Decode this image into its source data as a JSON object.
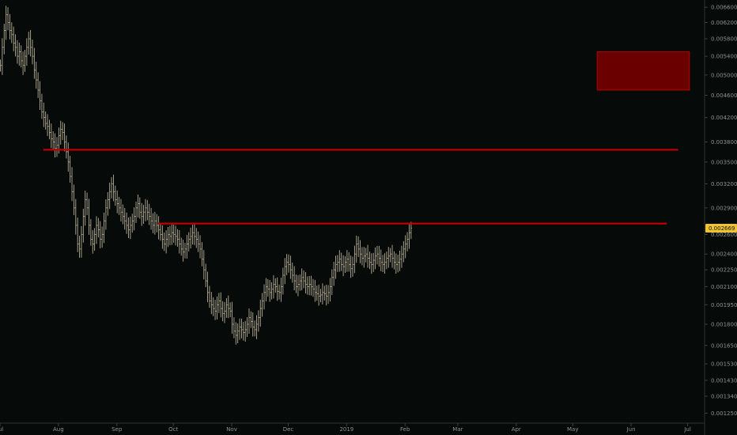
{
  "chart_data": {
    "type": "ohlc",
    "title": "",
    "xlabel": "",
    "ylabel": "",
    "ylim": [
      0.0012,
      0.0068
    ],
    "y_scale": "log",
    "grid": false,
    "x_ticks": [
      "Jul",
      "Aug",
      "Sep",
      "Oct",
      "Nov",
      "Dec",
      "2019",
      "Feb",
      "Mar",
      "Apr",
      "May",
      "Jun",
      "Jul"
    ],
    "y_ticks": [
      "0.006600",
      "0.006200",
      "0.005800",
      "0.005400",
      "0.005000",
      "0.004600",
      "0.004200",
      "0.003800",
      "0.003500",
      "0.003200",
      "0.002900",
      "0.002600",
      "0.002400",
      "0.002250",
      "0.002100",
      "0.001950",
      "0.001800",
      "0.001650",
      "0.001530",
      "0.001430",
      "0.001340",
      "0.001250"
    ],
    "last_price": "0.002669",
    "x_range": [
      "2018-07-01",
      "2019-07-10"
    ],
    "series": [
      {
        "type": "ohlc",
        "start": "2018-07-01",
        "interval": "1 day",
        "closes": [
          0.0052,
          0.0056,
          0.006,
          0.0064,
          0.0062,
          0.006,
          0.0059,
          0.0057,
          0.0056,
          0.0054,
          0.0055,
          0.0053,
          0.0052,
          0.0054,
          0.0056,
          0.0058,
          0.0056,
          0.0054,
          0.0051,
          0.0049,
          0.0047,
          0.0045,
          0.0043,
          0.0042,
          0.0041,
          0.00405,
          0.00395,
          0.00385,
          0.0038,
          0.0037,
          0.00375,
          0.0039,
          0.004,
          0.00395,
          0.0038,
          0.00365,
          0.0035,
          0.0033,
          0.0031,
          0.0029,
          0.0027,
          0.0025,
          0.00245,
          0.0026,
          0.0028,
          0.003,
          0.0029,
          0.0027,
          0.00255,
          0.0025,
          0.0026,
          0.0027,
          0.00265,
          0.00255,
          0.0026,
          0.00275,
          0.0029,
          0.003,
          0.0031,
          0.0032,
          0.0031,
          0.003,
          0.00295,
          0.0029,
          0.00285,
          0.0028,
          0.00275,
          0.0027,
          0.00265,
          0.0027,
          0.00275,
          0.0028,
          0.0029,
          0.00295,
          0.00285,
          0.0028,
          0.00285,
          0.0029,
          0.00285,
          0.0028,
          0.00275,
          0.0027,
          0.00275,
          0.0027,
          0.00265,
          0.0026,
          0.00255,
          0.0025,
          0.00255,
          0.0026,
          0.00258,
          0.00262,
          0.0026,
          0.00258,
          0.00255,
          0.0025,
          0.00245,
          0.00242,
          0.00245,
          0.0025,
          0.00255,
          0.00258,
          0.00262,
          0.00258,
          0.00255,
          0.0025,
          0.00245,
          0.00235,
          0.00225,
          0.00215,
          0.00205,
          0.00198,
          0.00195,
          0.00192,
          0.0019,
          0.00195,
          0.00198,
          0.00192,
          0.00188,
          0.0019,
          0.00195,
          0.00192,
          0.0019,
          0.0018,
          0.00175,
          0.00172,
          0.00175,
          0.00178,
          0.00176,
          0.00174,
          0.00176,
          0.0018,
          0.00185,
          0.00182,
          0.00178,
          0.00176,
          0.0018,
          0.00185,
          0.00192,
          0.00198,
          0.00205,
          0.0021,
          0.00208,
          0.00205,
          0.00208,
          0.00212,
          0.0021,
          0.00206,
          0.00205,
          0.0021,
          0.0022,
          0.00228,
          0.00232,
          0.0023,
          0.00225,
          0.0022,
          0.00215,
          0.0021,
          0.00212,
          0.00215,
          0.00218,
          0.00215,
          0.00212,
          0.0021,
          0.00212,
          0.0021,
          0.00208,
          0.00205,
          0.00204,
          0.00202,
          0.00203,
          0.00205,
          0.00204,
          0.00202,
          0.00205,
          0.0021,
          0.00218,
          0.00225,
          0.0023,
          0.00232,
          0.00235,
          0.0023,
          0.00228,
          0.00232,
          0.00235,
          0.0023,
          0.00226,
          0.0023,
          0.0024,
          0.0025,
          0.00245,
          0.0024,
          0.00236,
          0.00238,
          0.0024,
          0.00236,
          0.00232,
          0.0023,
          0.00234,
          0.00238,
          0.0024,
          0.00236,
          0.00232,
          0.0023,
          0.00232,
          0.00236,
          0.00238,
          0.0024,
          0.00236,
          0.00232,
          0.0023,
          0.00232,
          0.00235,
          0.0024,
          0.00245,
          0.0025,
          0.00255,
          0.00262,
          0.00267
        ]
      }
    ],
    "horizontal_levels": [
      {
        "value": 0.00368,
        "from": "2018-07-24",
        "to": "2019-06-26",
        "color": "#c00000"
      },
      {
        "value": 0.00272,
        "from": "2018-09-23",
        "to": "2019-06-20",
        "color": "#c00000"
      }
    ],
    "zone": {
      "from": "2019-05-14",
      "to": "2019-07-02",
      "y_from": 0.0047,
      "y_to": 0.0055,
      "fill": "#6b0000",
      "stroke": "#b30000"
    },
    "colors": {
      "bars": "#b6ad97",
      "background": "#060a08",
      "badge": "#f0c330"
    }
  }
}
